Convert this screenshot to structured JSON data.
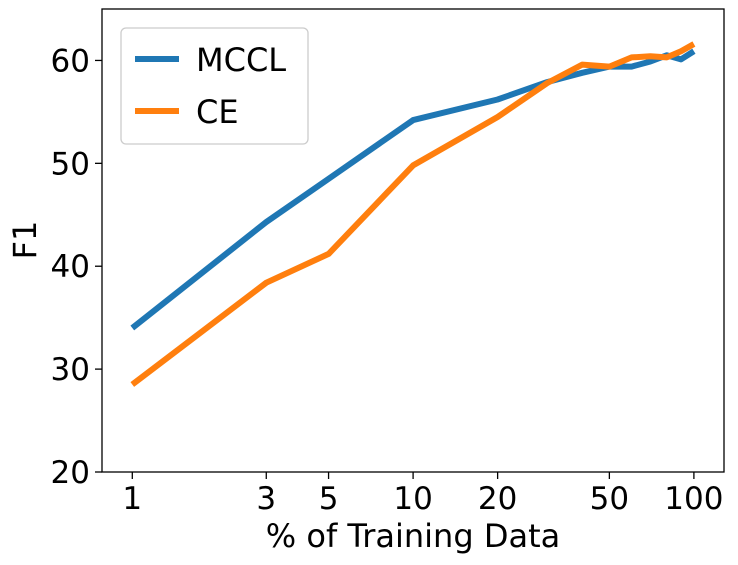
{
  "chart_data": {
    "type": "line",
    "title": "",
    "xlabel": "% of Training Data",
    "ylabel": "F1",
    "xscale": "log",
    "xlim": [
      0.78,
      128
    ],
    "ylim": [
      20,
      65
    ],
    "xticks": [
      1,
      3,
      5,
      10,
      20,
      50,
      100
    ],
    "xtick_labels": [
      "1",
      "3",
      "5",
      "10",
      "20",
      "50",
      "100"
    ],
    "yticks": [
      20,
      30,
      40,
      50,
      60
    ],
    "ytick_labels": [
      "20",
      "30",
      "40",
      "50",
      "60"
    ],
    "legend_position": "top-left",
    "grid": false,
    "series": [
      {
        "name": "MCCL",
        "color": "#1f77b4",
        "x": [
          1,
          3,
          5,
          10,
          20,
          30,
          40,
          50,
          60,
          70,
          80,
          90,
          100
        ],
        "y": [
          34.0,
          44.3,
          48.5,
          54.2,
          56.2,
          57.9,
          58.8,
          59.4,
          59.4,
          59.9,
          60.5,
          60.1,
          60.9
        ]
      },
      {
        "name": "CE",
        "color": "#ff7f0e",
        "x": [
          1,
          3,
          5,
          10,
          20,
          30,
          40,
          50,
          60,
          70,
          80,
          90,
          100
        ],
        "y": [
          28.5,
          38.4,
          41.2,
          49.8,
          54.5,
          57.8,
          59.6,
          59.4,
          60.3,
          60.4,
          60.3,
          60.9,
          61.6
        ]
      }
    ]
  }
}
